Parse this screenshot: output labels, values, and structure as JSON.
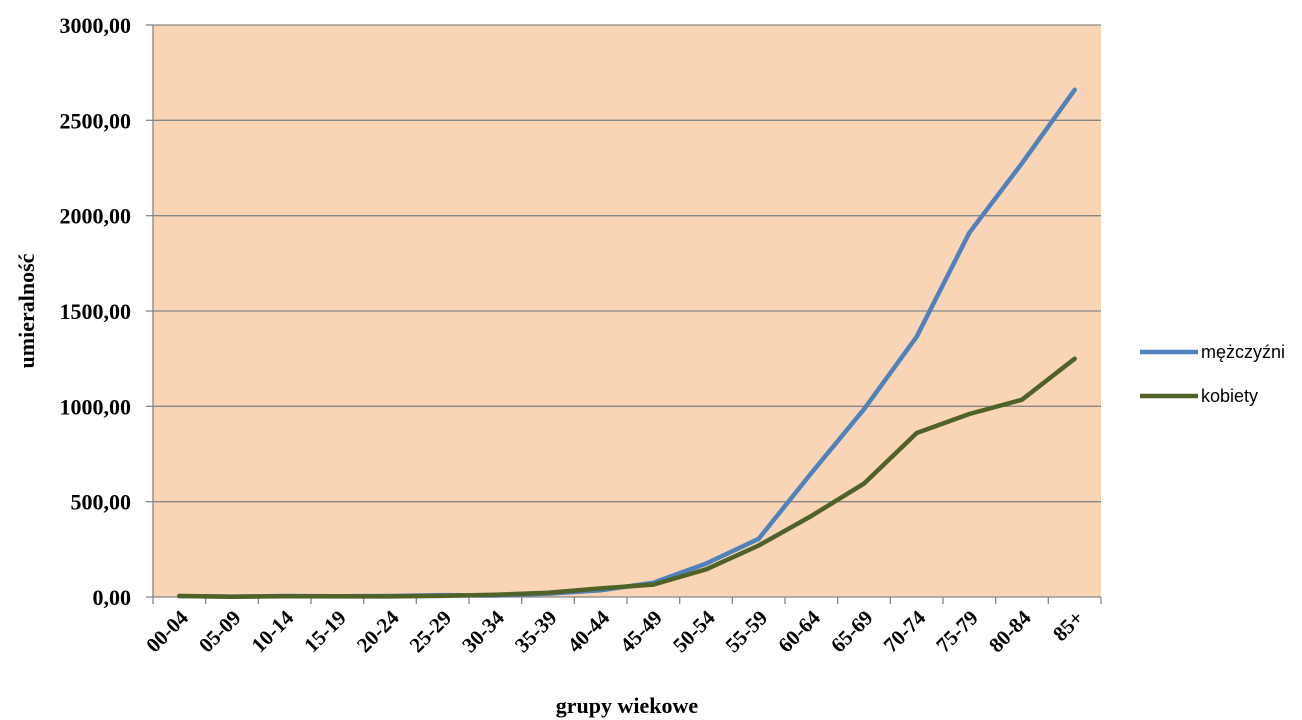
{
  "chart_data": {
    "type": "line",
    "title": "",
    "xlabel": "grupy wiekowe",
    "ylabel": "umieralność",
    "categories": [
      "00-04",
      "05-09",
      "10-14",
      "15-19",
      "20-24",
      "25-29",
      "30-34",
      "35-39",
      "40-44",
      "45-49",
      "50-54",
      "55-59",
      "60-64",
      "65-69",
      "70-74",
      "75-79",
      "80-84",
      "85+"
    ],
    "ylim": [
      0,
      3000
    ],
    "yticks": [
      "0,00",
      "500,00",
      "1000,00",
      "1500,00",
      "2000,00",
      "2500,00",
      "3000,00"
    ],
    "grid": true,
    "legend_position": "right",
    "plot_background": "#FAD5B5",
    "series": [
      {
        "name": "mężczyźni",
        "color": "#4F81BD",
        "values": [
          5,
          2,
          5,
          4,
          5,
          10,
          8,
          18,
          35,
          75,
          175,
          305,
          650,
          985,
          1365,
          1910,
          2275,
          2660
        ]
      },
      {
        "name": "kobiety",
        "color": "#4F6228",
        "values": [
          5,
          1,
          4,
          3,
          3,
          6,
          12,
          22,
          45,
          65,
          145,
          270,
          425,
          595,
          860,
          960,
          1035,
          1250
        ]
      }
    ]
  }
}
